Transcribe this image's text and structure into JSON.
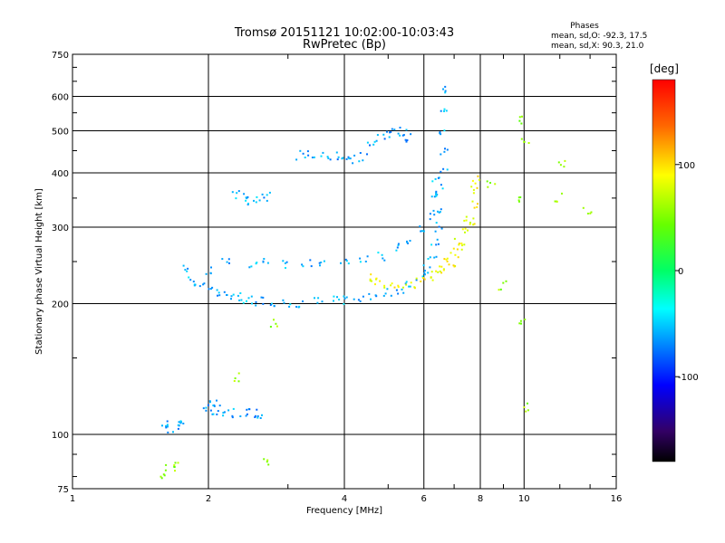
{
  "chart_data": {
    "type": "scatter",
    "title": "Tromsø 20151121 10:02:00-10:03:43",
    "subtitle": "RwPretec (Bp)",
    "stats": {
      "header": "Phases",
      "line_o": "mean, sd,O: -92.3, 17.5",
      "line_x": "mean, sd,X:  90.3, 21.0"
    },
    "xlabel": "Frequency [MHz]",
    "ylabel": "Stationary phase Virtual Height [km]",
    "x_scale": "log",
    "y_scale": "log",
    "xlim": [
      1,
      16
    ],
    "ylim": [
      75,
      750
    ],
    "xticks": [
      {
        "v": 1,
        "label": "1"
      },
      {
        "v": 2,
        "label": "2"
      },
      {
        "v": 4,
        "label": "4"
      },
      {
        "v": 6,
        "label": "6"
      },
      {
        "v": 8,
        "label": "8"
      },
      {
        "v": 10,
        "label": "10"
      },
      {
        "v": 16,
        "label": "16"
      }
    ],
    "yticks": [
      {
        "v": 75,
        "label": "75"
      },
      {
        "v": 100,
        "label": "100"
      },
      {
        "v": 200,
        "label": "200"
      },
      {
        "v": 300,
        "label": "300"
      },
      {
        "v": 400,
        "label": "400"
      },
      {
        "v": 500,
        "label": "500"
      },
      {
        "v": 600,
        "label": "600"
      },
      {
        "v": 750,
        "label": "750"
      }
    ],
    "grid": true,
    "colorbar": {
      "label": "[deg]",
      "range": [
        -180,
        180
      ],
      "ticks": [
        {
          "v": 100,
          "label": "100"
        },
        {
          "v": 0,
          "label": "0"
        },
        {
          "v": -100,
          "label": "-100"
        }
      ]
    },
    "series": [
      {
        "description": "O-mode F-layer trace",
        "phase": -95,
        "points": [
          [
            1.8,
            240
          ],
          [
            1.85,
            225
          ],
          [
            1.9,
            222
          ],
          [
            2.0,
            218
          ],
          [
            2.1,
            213
          ],
          [
            2.2,
            210
          ],
          [
            2.3,
            207
          ],
          [
            2.4,
            205
          ],
          [
            2.5,
            204
          ],
          [
            2.6,
            203
          ],
          [
            2.8,
            202
          ],
          [
            3.0,
            201
          ],
          [
            3.2,
            201
          ],
          [
            3.5,
            202
          ],
          [
            3.8,
            203
          ],
          [
            4.0,
            204
          ],
          [
            4.3,
            206
          ],
          [
            4.6,
            208
          ],
          [
            5.0,
            212
          ],
          [
            5.3,
            216
          ],
          [
            5.6,
            222
          ],
          [
            5.9,
            230
          ],
          [
            6.1,
            240
          ],
          [
            6.25,
            255
          ],
          [
            6.35,
            275
          ],
          [
            6.45,
            300
          ],
          [
            6.5,
            330
          ],
          [
            6.55,
            360
          ],
          [
            6.6,
            400
          ],
          [
            6.62,
            450
          ],
          [
            6.65,
            500
          ],
          [
            6.68,
            560
          ],
          [
            6.7,
            620
          ],
          [
            2.0,
            240
          ],
          [
            2.2,
            250
          ],
          [
            2.5,
            245
          ],
          [
            2.7,
            250
          ],
          [
            3.0,
            245
          ],
          [
            3.3,
            250
          ],
          [
            3.6,
            248
          ],
          [
            4.0,
            250
          ],
          [
            4.4,
            252
          ],
          [
            4.8,
            258
          ],
          [
            5.2,
            268
          ],
          [
            5.6,
            280
          ],
          [
            6.0,
            300
          ],
          [
            6.2,
            320
          ],
          [
            6.3,
            350
          ],
          [
            6.4,
            380
          ]
        ]
      },
      {
        "description": "X-mode F-layer trace",
        "phase": 95,
        "points": [
          [
            4.5,
            230
          ],
          [
            4.8,
            225
          ],
          [
            5.0,
            222
          ],
          [
            5.3,
            221
          ],
          [
            5.6,
            222
          ],
          [
            5.9,
            226
          ],
          [
            6.2,
            232
          ],
          [
            6.5,
            240
          ],
          [
            6.8,
            250
          ],
          [
            7.0,
            262
          ],
          [
            7.2,
            278
          ],
          [
            7.4,
            295
          ],
          [
            7.55,
            315
          ],
          [
            7.7,
            340
          ],
          [
            7.8,
            365
          ],
          [
            7.9,
            385
          ],
          [
            6.6,
            235
          ],
          [
            6.9,
            245
          ],
          [
            7.3,
            270
          ],
          [
            7.6,
            300
          ]
        ]
      },
      {
        "description": "Upper F trace near 430-500 km",
        "phase": -100,
        "points": [
          [
            3.2,
            440
          ],
          [
            3.4,
            445
          ],
          [
            3.6,
            435
          ],
          [
            3.8,
            440
          ],
          [
            4.0,
            425
          ],
          [
            4.2,
            430
          ],
          [
            4.4,
            435
          ],
          [
            4.6,
            470
          ],
          [
            4.8,
            480
          ],
          [
            5.0,
            490
          ],
          [
            5.2,
            495
          ],
          [
            5.4,
            500
          ],
          [
            5.6,
            480
          ]
        ]
      },
      {
        "description": "Patch near 350 km",
        "phase": -95,
        "points": [
          [
            2.3,
            355
          ],
          [
            2.4,
            350
          ],
          [
            2.5,
            345
          ],
          [
            2.6,
            348
          ],
          [
            2.7,
            352
          ]
        ]
      },
      {
        "description": "E-layer echoes",
        "phase": -100,
        "points": [
          [
            1.6,
            105
          ],
          [
            1.65,
            103
          ],
          [
            1.7,
            106
          ],
          [
            1.75,
            104
          ],
          [
            2.0,
            113
          ],
          [
            2.1,
            114
          ],
          [
            2.2,
            113
          ],
          [
            2.3,
            112
          ],
          [
            2.4,
            113
          ],
          [
            2.5,
            112
          ],
          [
            2.6,
            111
          ],
          [
            2.0,
            118
          ],
          [
            2.1,
            117
          ]
        ]
      },
      {
        "description": "Scattered outliers",
        "phase": 60,
        "points": [
          [
            1.65,
            83
          ],
          [
            1.7,
            86
          ],
          [
            1.6,
            80
          ],
          [
            2.3,
            135
          ],
          [
            2.7,
            87
          ],
          [
            2.8,
            180
          ],
          [
            9.8,
            350
          ],
          [
            9.8,
            180
          ],
          [
            10.2,
            115
          ],
          [
            12.2,
            420
          ],
          [
            12.0,
            350
          ],
          [
            13.8,
            330
          ],
          [
            9.8,
            530
          ],
          [
            10.0,
            480
          ],
          [
            8.5,
            380
          ],
          [
            9.0,
            220
          ]
        ]
      }
    ]
  }
}
